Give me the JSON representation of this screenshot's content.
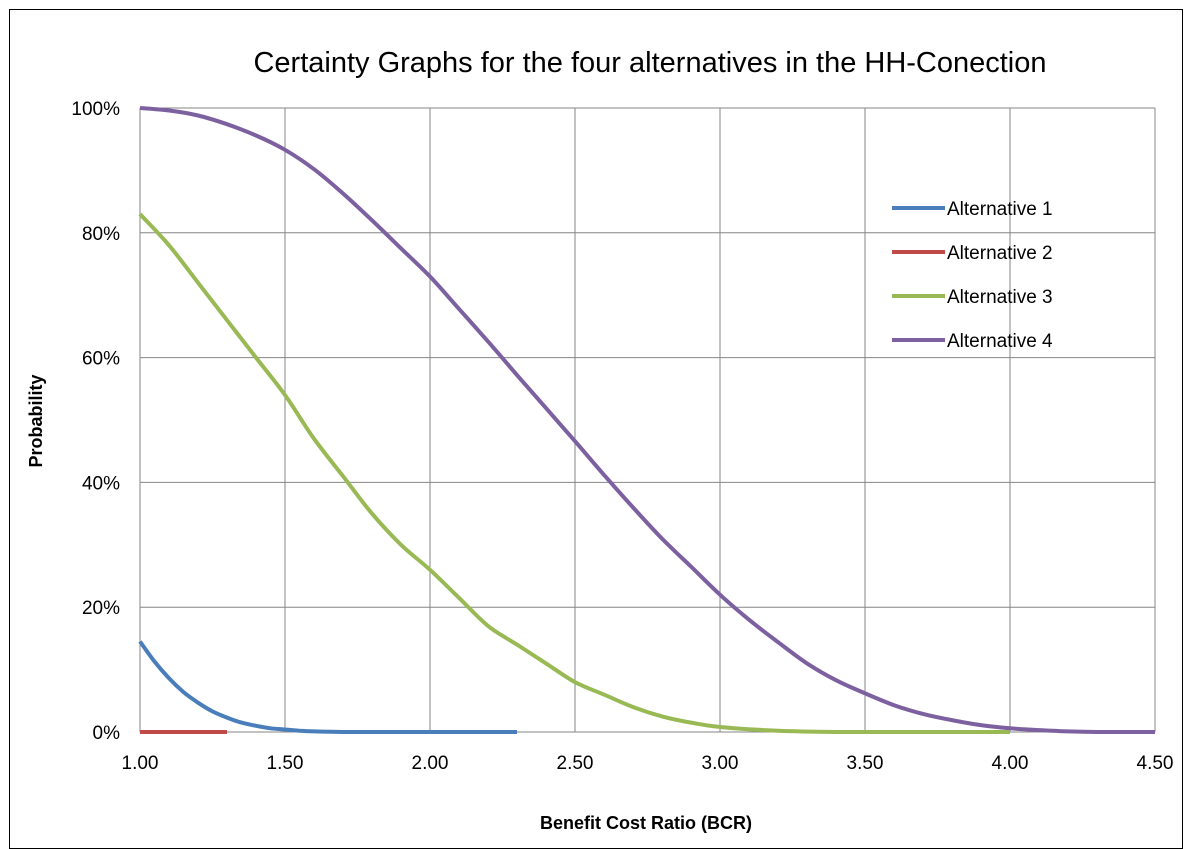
{
  "chart_data": {
    "type": "line",
    "title": "Certainty Graphs for the four alternatives in the HH-Conection",
    "xlabel": "Benefit Cost Ratio (BCR)",
    "ylabel": "Probability",
    "xlim": [
      1.0,
      4.5
    ],
    "ylim": [
      0,
      100
    ],
    "x_ticks": [
      "1.00",
      "1.50",
      "2.00",
      "2.50",
      "3.00",
      "3.50",
      "4.00",
      "4.50"
    ],
    "y_ticks": [
      "0%",
      "20%",
      "40%",
      "60%",
      "80%",
      "100%"
    ],
    "grid": true,
    "legend_position": "right",
    "series": [
      {
        "name": "Alternative 1",
        "color": "#4a7ebb",
        "x": [
          1.0,
          1.05,
          1.1,
          1.15,
          1.2,
          1.25,
          1.3,
          1.35,
          1.4,
          1.45,
          1.5,
          1.55,
          1.6,
          1.7,
          1.8,
          2.0,
          2.2,
          2.3
        ],
        "y": [
          14.5,
          11.3,
          8.6,
          6.4,
          4.7,
          3.3,
          2.3,
          1.5,
          1.0,
          0.6,
          0.4,
          0.2,
          0.1,
          0,
          0,
          0,
          0,
          0
        ]
      },
      {
        "name": "Alternative 2",
        "color": "#be4b48",
        "x": [
          1.0,
          1.3
        ],
        "y": [
          0,
          0
        ]
      },
      {
        "name": "Alternative 3",
        "color": "#98b954",
        "x": [
          1.0,
          1.1,
          1.2,
          1.3,
          1.4,
          1.5,
          1.6,
          1.7,
          1.8,
          1.9,
          2.0,
          2.1,
          2.2,
          2.3,
          2.4,
          2.5,
          2.6,
          2.7,
          2.8,
          2.9,
          3.0,
          3.2,
          3.4,
          3.6,
          3.8,
          4.0
        ],
        "y": [
          83,
          78,
          72,
          66,
          60,
          54,
          47,
          41,
          35,
          30,
          26,
          21.5,
          17,
          14,
          11,
          8,
          6,
          4,
          2.5,
          1.5,
          0.8,
          0.2,
          0,
          0,
          0,
          0
        ]
      },
      {
        "name": "Alternative 4",
        "color": "#7d60a0",
        "x": [
          1.0,
          1.1,
          1.2,
          1.3,
          1.4,
          1.5,
          1.6,
          1.7,
          1.8,
          1.9,
          2.0,
          2.1,
          2.2,
          2.3,
          2.4,
          2.5,
          2.6,
          2.7,
          2.8,
          2.9,
          3.0,
          3.1,
          3.2,
          3.3,
          3.4,
          3.5,
          3.6,
          3.7,
          3.8,
          3.9,
          4.0,
          4.1,
          4.2,
          4.3,
          4.4,
          4.5
        ],
        "y": [
          100,
          99.6,
          98.8,
          97.4,
          95.6,
          93.3,
          90.2,
          86.3,
          82,
          77.5,
          73,
          67.8,
          62.6,
          57.2,
          51.9,
          46.6,
          41.2,
          36,
          31,
          26.5,
          22,
          18,
          14.4,
          11,
          8.3,
          6.2,
          4.3,
          2.9,
          1.9,
          1.1,
          0.6,
          0.3,
          0.1,
          0,
          0,
          0
        ]
      }
    ]
  }
}
